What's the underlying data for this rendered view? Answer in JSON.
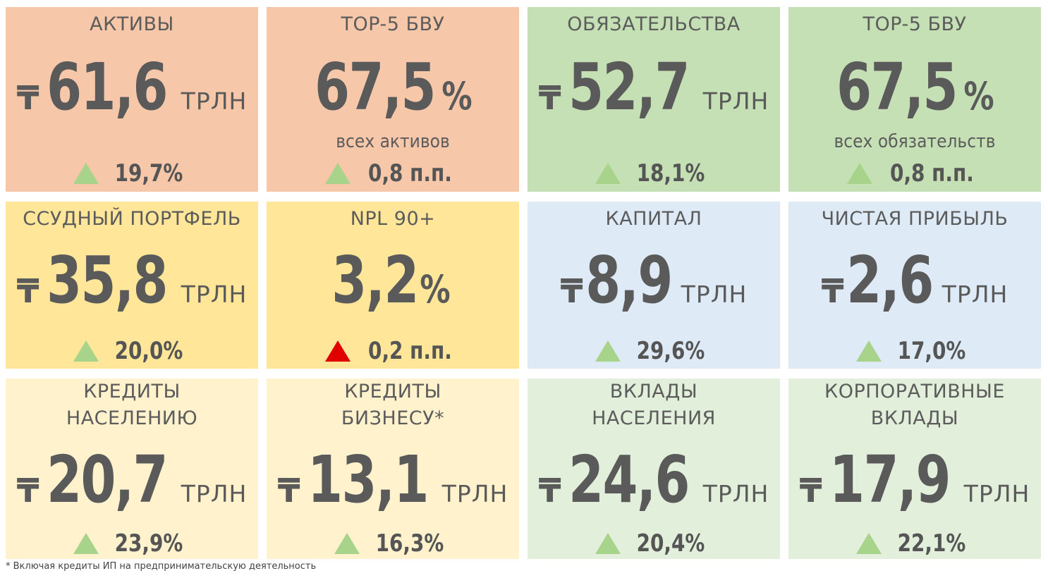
{
  "colors": {
    "red_bg": "#f6c7a9",
    "green_bg": "#c5e0b4",
    "yellow_bg": "#ffe699",
    "blue_bg": "#deebf7",
    "cream_bg": "#fff2cc",
    "light_green_bg": "#e2efda",
    "up_green": "#a8d38b",
    "up_red": "#e00000"
  },
  "currency_symbol": "₸",
  "unit": "ТРЛН",
  "cards": [
    {
      "title": "АКТИВЫ",
      "value": "61,6",
      "delta": "19,7%",
      "delta_color": "up_green"
    },
    {
      "title": "TOP-5 БВУ",
      "value": "67,5",
      "pct": "%",
      "subtitle": "всех активов",
      "delta": "0,8 п.п.",
      "delta_color": "up_green"
    },
    {
      "title": "ОБЯЗАТЕЛЬСТВА",
      "value": "52,7",
      "delta": "18,1%",
      "delta_color": "up_green"
    },
    {
      "title": "TOP-5 БВУ",
      "value": "67,5",
      "pct": "%",
      "subtitle": "всех обязательств",
      "delta": "0,8 п.п.",
      "delta_color": "up_green"
    },
    {
      "title": "ССУДНЫЙ ПОРТФЕЛЬ",
      "value": "35,8",
      "delta": "20,0%",
      "delta_color": "up_green"
    },
    {
      "title": "NPL 90+",
      "value": "3,2",
      "pct": "%",
      "delta": "0,2 п.п.",
      "delta_color": "up_red"
    },
    {
      "title": "КАПИТАЛ",
      "value": "8,9",
      "delta": "29,6%",
      "delta_color": "up_green"
    },
    {
      "title": "ЧИСТАЯ ПРИБЫЛЬ",
      "value": "2,6",
      "delta": "17,0%",
      "delta_color": "up_green"
    },
    {
      "title": "КРЕДИТЫ\nНАСЕЛЕНИЮ",
      "value": "20,7",
      "delta": "23,9%",
      "delta_color": "up_green"
    },
    {
      "title": "КРЕДИТЫ\nБИЗНЕСУ*",
      "value": "13,1",
      "delta": "16,3%",
      "delta_color": "up_green"
    },
    {
      "title": "ВКЛАДЫ\nНАСЕЛЕНИЯ",
      "value": "24,6",
      "delta": "20,4%",
      "delta_color": "up_green"
    },
    {
      "title": "КОРПОРАТИВНЫЕ\nВКЛАДЫ",
      "value": "17,9",
      "delta": "22,1%",
      "delta_color": "up_green"
    }
  ],
  "footnote": "* Включая кредиты ИП на предпринимательскую деятельность"
}
